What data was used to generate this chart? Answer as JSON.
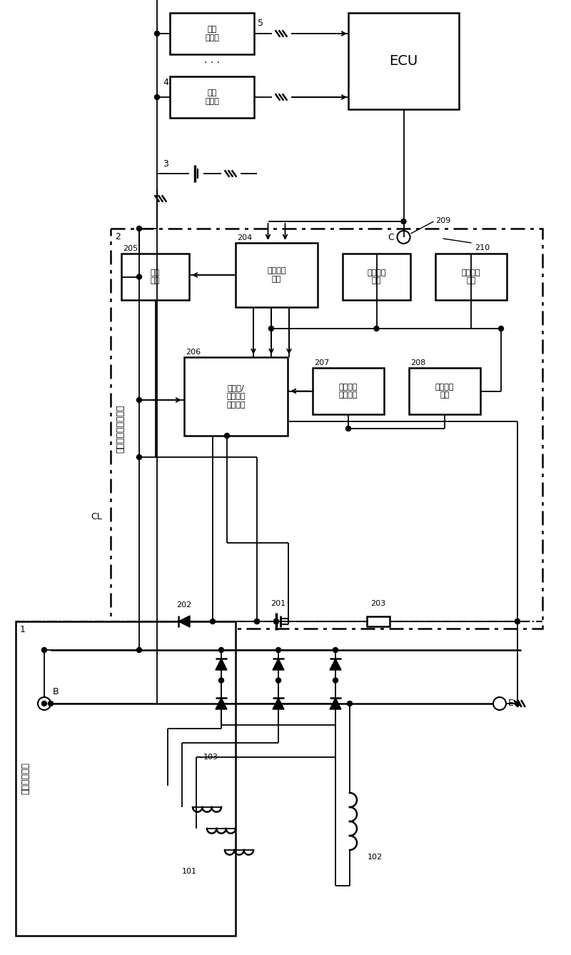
{
  "bg_color": "#ffffff",
  "labels": {
    "ecu": "ECU",
    "block1_top": "电池\n检测器",
    "block1_bot": "电池\n检测器",
    "block205": "电源\n电路",
    "block204": "通信控制\n电路",
    "block209": "基准电压\n电路",
    "block210": "温度检测\n电路",
    "block206": "发电压/\n励磁电流\n控制电路",
    "block207": "励磁电流\n检测电路",
    "block208": "旋转检测\n电路",
    "section1": "车辆用发电机",
    "section2": "车辆用发电控制装置",
    "n101": "101",
    "n102": "102",
    "n103": "103",
    "n201": "201",
    "n202": "202",
    "n203": "203",
    "n204": "204",
    "n205": "205",
    "n206": "206",
    "n207": "207",
    "n208": "208",
    "n209": "209",
    "n210": "210",
    "n1": "1",
    "n2": "2",
    "n3": "3",
    "n4": "4",
    "n5": "5",
    "nB": "B",
    "nC": "C",
    "nE": "E",
    "nCL": "CL"
  }
}
